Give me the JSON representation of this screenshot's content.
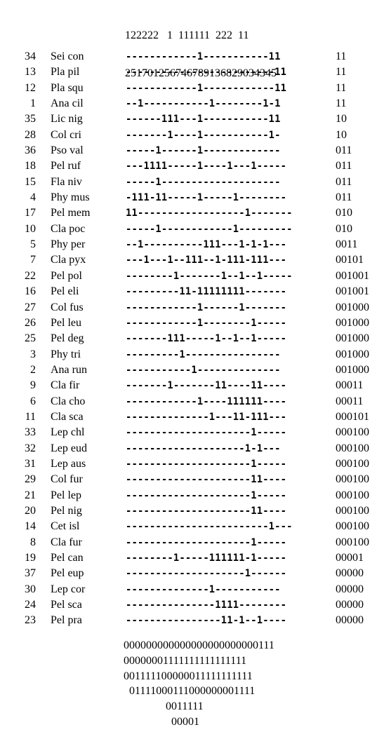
{
  "header": {
    "line1": "122222   1  111111  222  11",
    "line2": "251701256746789136829034345"
  },
  "rows": [
    {
      "num": "34",
      "name": "Sei con",
      "pattern": "------------1-----------11",
      "code": "11"
    },
    {
      "num": "13",
      "name": "Pla pil",
      "pattern": "-------------------------11",
      "code": "11"
    },
    {
      "num": "12",
      "name": "Pla squ",
      "pattern": "------------1------------11",
      "code": "11"
    },
    {
      "num": "1",
      "name": "Ana cil",
      "pattern": "--1-----------1--------1-1",
      "code": "11"
    },
    {
      "num": "35",
      "name": "Lic nig",
      "pattern": "------111---1-----------11",
      "code": "10"
    },
    {
      "num": "28",
      "name": "Col cri",
      "pattern": "-------1----1-----------1-",
      "code": "10"
    },
    {
      "num": "36",
      "name": "Pso val",
      "pattern": "-----1------1-------------",
      "code": "011"
    },
    {
      "num": "18",
      "name": "Pel ruf",
      "pattern": "---1111-----1----1---1-----",
      "code": "011"
    },
    {
      "num": "15",
      "name": "Fla niv",
      "pattern": "-----1--------------------",
      "code": "011"
    },
    {
      "num": "4",
      "name": "Phy mus",
      "pattern": "-111-11-----1-----1--------",
      "code": "011"
    },
    {
      "num": "17",
      "name": "Pel mem",
      "pattern": "11------------------1-------",
      "code": "010"
    },
    {
      "num": "10",
      "name": "Cla poc",
      "pattern": "-----1------------1---------",
      "code": "010"
    },
    {
      "num": "5",
      "name": "Phy per",
      "pattern": "--1----------111---1-1-1---",
      "code": "0011"
    },
    {
      "num": "7",
      "name": "Cla pyx",
      "pattern": "---1---1--111--1-111-111---",
      "code": "00101"
    },
    {
      "num": "22",
      "name": "Pel pol",
      "pattern": "--------1-------1--1--1-----",
      "code": "001001"
    },
    {
      "num": "16",
      "name": "Pel eli",
      "pattern": "---------11-11111111-------",
      "code": "001001"
    },
    {
      "num": "27",
      "name": "Col fus",
      "pattern": "------------1------1-------",
      "code": "001000"
    },
    {
      "num": "26",
      "name": "Pel leu",
      "pattern": "------------1--------1-----",
      "code": "001000"
    },
    {
      "num": "25",
      "name": "Pel deg",
      "pattern": "-------111-----1--1--1-----",
      "code": "001000"
    },
    {
      "num": "3",
      "name": "Phy tri",
      "pattern": "---------1----------------",
      "code": "001000"
    },
    {
      "num": "2",
      "name": "Ana run",
      "pattern": "-----------1--------------",
      "code": "001000"
    },
    {
      "num": "9",
      "name": "Cla fir",
      "pattern": "-------1-------11----11----",
      "code": "00011"
    },
    {
      "num": "6",
      "name": "Cla cho",
      "pattern": "------------1----111111----",
      "code": "00011"
    },
    {
      "num": "11",
      "name": "Cla sca",
      "pattern": "--------------1---11-111---",
      "code": "000101"
    },
    {
      "num": "33",
      "name": "Lep chl",
      "pattern": "---------------------1-----",
      "code": "000100"
    },
    {
      "num": "32",
      "name": "Lep eud",
      "pattern": "--------------------1-1---",
      "code": "000100"
    },
    {
      "num": "31",
      "name": "Lep aus",
      "pattern": "---------------------1-----",
      "code": "000100"
    },
    {
      "num": "29",
      "name": "Col fur",
      "pattern": "---------------------11----",
      "code": "000100"
    },
    {
      "num": "21",
      "name": "Pel lep",
      "pattern": "---------------------1-----",
      "code": "000100"
    },
    {
      "num": "20",
      "name": "Pel nig",
      "pattern": "---------------------11----",
      "code": "000100"
    },
    {
      "num": "14",
      "name": "Cet isl",
      "pattern": "------------------------1---",
      "code": "000100"
    },
    {
      "num": "8",
      "name": "Cla fur",
      "pattern": "---------------------1-----",
      "code": "000100"
    },
    {
      "num": "19",
      "name": "Pel can",
      "pattern": "--------1-----111111-1-----",
      "code": "00001"
    },
    {
      "num": "37",
      "name": "Pel eup",
      "pattern": "--------------------1------",
      "code": "00000"
    },
    {
      "num": "30",
      "name": "Lep cor",
      "pattern": "--------------1-----------",
      "code": "00000"
    },
    {
      "num": "24",
      "name": "Pel sca",
      "pattern": "---------------1111--------",
      "code": "00000"
    },
    {
      "num": "23",
      "name": "Pel pra",
      "pattern": "----------------11-1--1----",
      "code": "00000"
    }
  ],
  "footer": [
    "000000000000000000000000111",
    "00000001111111111111111",
    "001111100000011111111111",
    "  01111000111000000001111",
    "               0011111",
    "                 00001"
  ]
}
